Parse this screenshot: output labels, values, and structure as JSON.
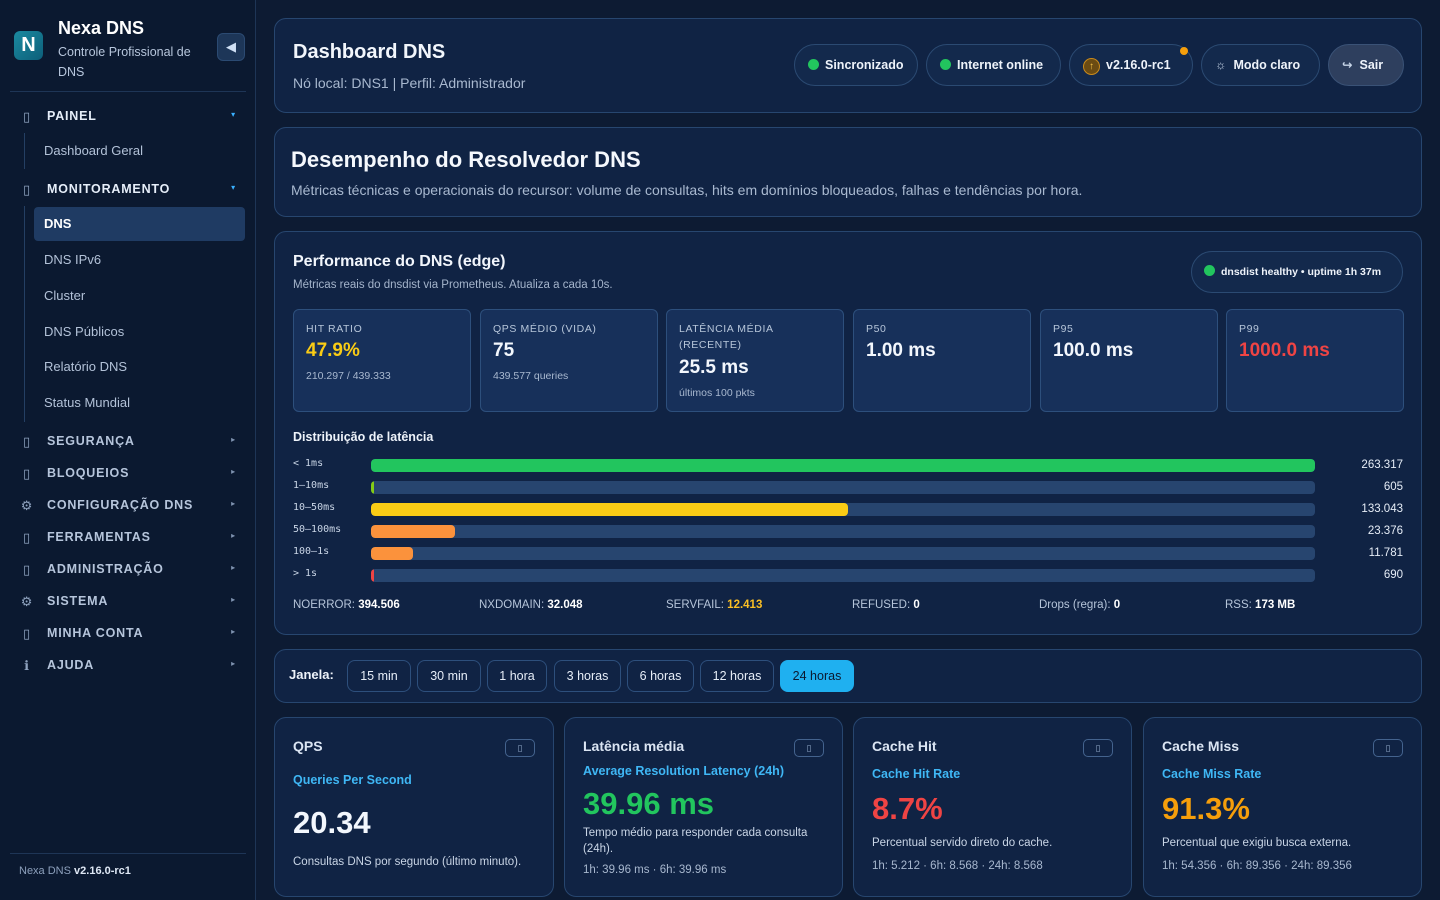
{
  "brand": {
    "name": "Nexa DNS",
    "subtitle": "Controle Profissional de DNS",
    "logo_letter": "N"
  },
  "sidebar": {
    "collapse_icon": "◀",
    "groups": [
      {
        "icon": "▯",
        "label": "PAINEL",
        "caret": "▾"
      },
      {
        "icon": "▯",
        "label": "MONITORAMENTO",
        "caret": "▾"
      },
      {
        "icon": "▯",
        "label": "SEGURANÇA",
        "caret": "▸"
      },
      {
        "icon": "▯",
        "label": "BLOQUEIOS",
        "caret": "▸"
      },
      {
        "icon": "⚙",
        "label": "CONFIGURAÇÃO DNS",
        "caret": "▸"
      },
      {
        "icon": "▯",
        "label": "FERRAMENTAS",
        "caret": "▸"
      },
      {
        "icon": "▯",
        "label": "ADMINISTRAÇÃO",
        "caret": "▸"
      },
      {
        "icon": "⚙",
        "label": "SISTEMA",
        "caret": "▸"
      },
      {
        "icon": "▯",
        "label": "MINHA CONTA",
        "caret": "▸"
      },
      {
        "icon": "ℹ",
        "label": "AJUDA",
        "caret": "▸"
      }
    ],
    "painel_items": [
      "Dashboard Geral"
    ],
    "monitoramento_items": [
      "DNS",
      "DNS IPv6",
      "Cluster",
      "DNS Públicos",
      "Relatório DNS",
      "Status Mundial"
    ],
    "active_item": "DNS",
    "footer_prefix": "Nexa DNS",
    "footer_version": "v2.16.0-rc1"
  },
  "header": {
    "title": "Dashboard DNS",
    "subtitle": "Nó local: DNS1 | Perfil: Administrador",
    "pills": {
      "sync": "Sincronizado",
      "internet": "Internet online",
      "version": "v2.16.0-rc1",
      "version_icon": "↑",
      "theme": "Modo claro",
      "theme_icon": "☼",
      "logout": "Sair",
      "logout_icon": "↪"
    }
  },
  "intro": {
    "title": "Desempenho do Resolvedor DNS",
    "subtitle": "Métricas técnicas e operacionais do recursor: volume de consultas, hits em domínios bloqueados, falhas e tendências por hora."
  },
  "performance": {
    "title": "Performance do DNS (edge)",
    "subtitle": "Métricas reais do dnsdist via Prometheus. Atualiza a cada 10s.",
    "health": "dnsdist healthy • uptime 1h 37m",
    "metrics": [
      {
        "label": "HIT RATIO",
        "value": "47.9%",
        "foot": "210.297 / 439.333",
        "color": "#facc15"
      },
      {
        "label": "QPS MÉDIO (VIDA)",
        "value": "75",
        "foot": "439.577 queries",
        "color": "#f3f7fd"
      },
      {
        "label": "LATÊNCIA MÉDIA (RECENTE)",
        "value": "25.5 ms",
        "foot": "últimos 100 pkts",
        "color": "#f3f7fd"
      },
      {
        "label": "P50",
        "value": "1.00 ms",
        "foot": "",
        "color": "#f3f7fd"
      },
      {
        "label": "P95",
        "value": "100.0 ms",
        "foot": "",
        "color": "#f3f7fd"
      },
      {
        "label": "P99",
        "value": "1000.0 ms",
        "foot": "",
        "color": "#ef4444"
      }
    ],
    "distribution_title": "Distribuição de latência",
    "distribution": [
      {
        "label": "< 1ms",
        "count": "263.317",
        "fraction": 1.0,
        "color": "#22c55e"
      },
      {
        "label": "1–10ms",
        "count": "605",
        "fraction": 0.0023,
        "color": "#84cc16"
      },
      {
        "label": "10–50ms",
        "count": "133.043",
        "fraction": 0.5053,
        "color": "#facc15"
      },
      {
        "label": "50–100ms",
        "count": "23.376",
        "fraction": 0.0888,
        "color": "#fb923c"
      },
      {
        "label": "100–1s",
        "count": "11.781",
        "fraction": 0.0447,
        "color": "#fb923c"
      },
      {
        "label": "> 1s",
        "count": "690",
        "fraction": 0.0026,
        "color": "#ef4444"
      }
    ],
    "stats": [
      {
        "label": "NOERROR:",
        "value": "394.506"
      },
      {
        "label": "NXDOMAIN:",
        "value": "32.048"
      },
      {
        "label": "SERVFAIL:",
        "value": "12.413"
      },
      {
        "label": "REFUSED:",
        "value": "0"
      },
      {
        "label": "Drops (regra):",
        "value": "0"
      },
      {
        "label": "RSS:",
        "value": "173 MB"
      }
    ]
  },
  "window": {
    "label": "Janela:",
    "options": [
      "15 min",
      "30 min",
      "1 hora",
      "3 horas",
      "6 horas",
      "12 horas",
      "24 horas"
    ],
    "selected": "24 horas"
  },
  "kpis": [
    {
      "title": "QPS",
      "subtitle": "Queries Per Second",
      "value": "20.34",
      "desc": "Consultas DNS por segundo (último minuto).",
      "foot": "",
      "value_color": "#f3f7fd",
      "icon": "chart-icon"
    },
    {
      "title": "Latência média",
      "subtitle": "Average Resolution Latency (24h)",
      "value": "39.96 ms",
      "desc": "Tempo médio para responder cada consulta (24h).",
      "foot": "1h: 39.96 ms · 6h: 39.96 ms",
      "value_color": "#22c55e",
      "icon": "chart-icon"
    },
    {
      "title": "Cache Hit",
      "subtitle": "Cache Hit Rate",
      "value": "8.7%",
      "desc": "Percentual servido direto do cache.",
      "foot": "1h: 5.212 · 6h: 8.568 · 24h: 8.568",
      "value_color": "#ef4444",
      "icon": "chart-icon"
    },
    {
      "title": "Cache Miss",
      "subtitle": "Cache Miss Rate",
      "value": "91.3%",
      "desc": "Percentual que exigiu busca externa.",
      "foot": "1h: 54.356 · 6h: 89.356 · 24h: 89.356",
      "value_color": "#f59e0b",
      "icon": "chart-icon"
    }
  ],
  "icon_glyph": "▯"
}
